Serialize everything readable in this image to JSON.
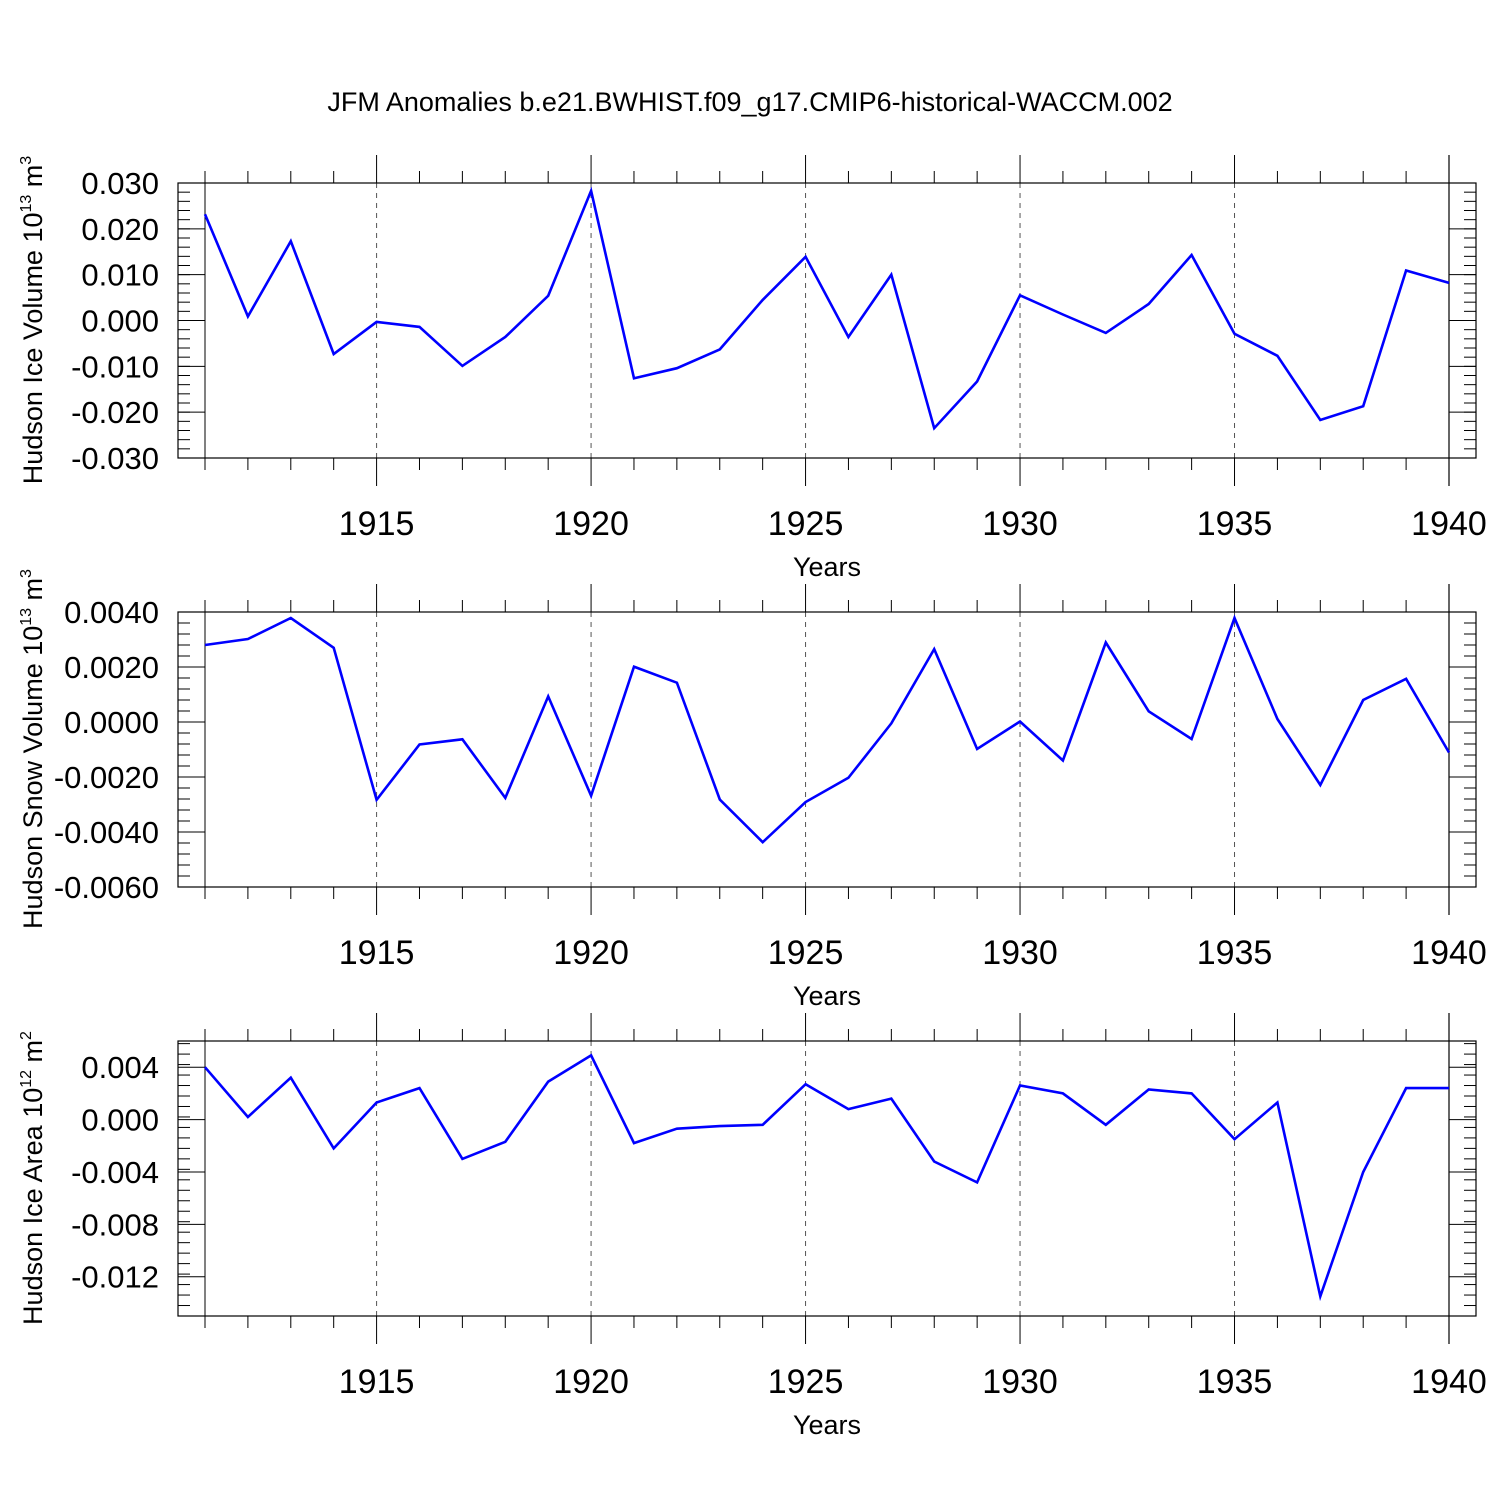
{
  "title": "JFM Anomalies b.e21.BWHIST.f09_g17.CMIP6-historical-WACCM.002",
  "chart_data": [
    {
      "type": "line",
      "xlabel": "Years",
      "ylabel": {
        "text": "Hudson Ice Volume 10",
        "exp": "13",
        "unit": " m",
        "unit_exp": "3"
      },
      "xlim": [
        1911,
        1940
      ],
      "ylim": [
        -0.03,
        0.03
      ],
      "xticks": [
        "1915",
        "1920",
        "1925",
        "1930",
        "1935",
        "1940"
      ],
      "yticks": [
        "0.030",
        "0.020",
        "0.010",
        "0.000",
        "-0.010",
        "-0.020",
        "-0.030"
      ],
      "ytick_values": [
        0.03,
        0.02,
        0.01,
        0.0,
        -0.01,
        -0.02,
        -0.03
      ],
      "grid": "dashed vertical at labeled years",
      "line_color": "#0000ff",
      "x": [
        1911,
        1912,
        1913,
        1914,
        1915,
        1916,
        1917,
        1918,
        1919,
        1920,
        1921,
        1922,
        1923,
        1924,
        1925,
        1926,
        1927,
        1928,
        1929,
        1930,
        1931,
        1932,
        1933,
        1934,
        1935,
        1936,
        1937,
        1938,
        1939,
        1940
      ],
      "values": [
        0.0232,
        0.0009,
        0.0173,
        -0.0073,
        -0.0003,
        -0.0014,
        -0.0099,
        -0.0036,
        0.0054,
        0.0283,
        -0.0126,
        -0.0104,
        -0.0063,
        0.0045,
        0.0139,
        -0.0036,
        0.01,
        -0.0235,
        -0.0133,
        0.0055,
        0.0013,
        -0.0027,
        0.0036,
        0.0143,
        -0.0029,
        -0.0077,
        -0.0217,
        -0.0187,
        0.0109,
        0.0082
      ]
    },
    {
      "type": "line",
      "xlabel": "Years",
      "ylabel": {
        "text": "Hudson Snow Volume 10",
        "exp": "13",
        "unit": " m",
        "unit_exp": "3"
      },
      "xlim": [
        1911,
        1940
      ],
      "ylim": [
        -0.006,
        0.004
      ],
      "xticks": [
        "1915",
        "1920",
        "1925",
        "1930",
        "1935",
        "1940"
      ],
      "yticks": [
        "0.0040",
        "0.0020",
        "0.0000",
        "-0.0020",
        "-0.0040",
        "-0.0060"
      ],
      "ytick_values": [
        0.004,
        0.002,
        0.0,
        -0.002,
        -0.004,
        -0.006
      ],
      "grid": "dashed vertical at labeled years",
      "line_color": "#0000ff",
      "x": [
        1911,
        1912,
        1913,
        1914,
        1915,
        1916,
        1917,
        1918,
        1919,
        1920,
        1921,
        1922,
        1923,
        1924,
        1925,
        1926,
        1927,
        1928,
        1929,
        1930,
        1931,
        1932,
        1933,
        1934,
        1935,
        1936,
        1937,
        1938,
        1939,
        1940
      ],
      "values": [
        0.0028,
        0.00302,
        0.00378,
        0.0027,
        -0.00283,
        -0.00082,
        -0.00063,
        -0.00276,
        0.00093,
        -0.00268,
        0.00201,
        0.00143,
        -0.00282,
        -0.00437,
        -0.00291,
        -0.00203,
        -5e-05,
        0.00265,
        -0.00098,
        2e-05,
        -0.0014,
        0.00289,
        0.00039,
        -0.00062,
        0.00378,
        0.00011,
        -0.00229,
        0.0008,
        0.00157,
        -0.00111
      ]
    },
    {
      "type": "line",
      "xlabel": "Years",
      "ylabel": {
        "text": "Hudson Ice Area 10",
        "exp": "12",
        "unit": " m",
        "unit_exp": "2"
      },
      "xlim": [
        1911,
        1940
      ],
      "ylim": [
        -0.015,
        0.006
      ],
      "xticks": [
        "1915",
        "1920",
        "1925",
        "1930",
        "1935",
        "1940"
      ],
      "yticks": [
        "0.004",
        "0.000",
        "-0.004",
        "-0.008",
        "-0.012"
      ],
      "ytick_values": [
        0.004,
        0.0,
        -0.004,
        -0.008,
        -0.012
      ],
      "grid": "dashed vertical at labeled years",
      "line_color": "#0000ff",
      "x": [
        1911,
        1912,
        1913,
        1914,
        1915,
        1916,
        1917,
        1918,
        1919,
        1920,
        1921,
        1922,
        1923,
        1924,
        1925,
        1926,
        1927,
        1928,
        1929,
        1930,
        1931,
        1932,
        1933,
        1934,
        1935,
        1936,
        1937,
        1938,
        1939,
        1940
      ],
      "values": [
        0.004,
        0.0002,
        0.0032,
        -0.0022,
        0.0013,
        0.0024,
        -0.003,
        -0.0017,
        0.0029,
        0.0049,
        -0.0018,
        -0.0007,
        -0.0005,
        -0.0004,
        0.0027,
        0.0008,
        0.0016,
        -0.0032,
        -0.0048,
        0.0026,
        0.002,
        -0.0004,
        0.0023,
        0.002,
        -0.0015,
        0.0013,
        -0.0135,
        -0.004,
        0.0024,
        0.0024
      ]
    }
  ]
}
